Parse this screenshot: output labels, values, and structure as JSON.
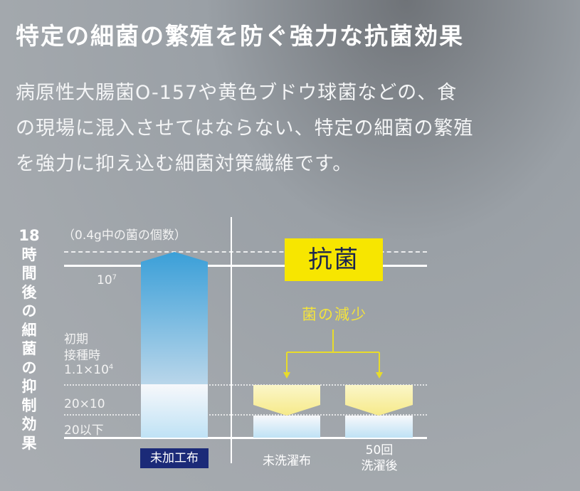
{
  "title": "特定の細菌の繁殖を防ぐ強力な抗菌効果",
  "description": [
    "病原性大腸菌O-157や黄色ブドウ球菌などの、食",
    "の現場に混入させてはならない、特定の細菌の繁殖",
    "を強力に抑え込む細菌対策繊維です。"
  ],
  "chart_data": {
    "type": "bar",
    "ylabel": "18時間後の細菌の抑制効果",
    "unit": "（0.4g中の菌の個数）",
    "ytick_labels": {
      "top_base": "10",
      "top_exp": "7",
      "initial_1": "初期",
      "initial_2": "接種時",
      "initial_base": "1.1×10",
      "initial_exp": "4",
      "mid": "20×10",
      "low": "20以下"
    },
    "categories": [
      "未加工布",
      "未洗濯布",
      "50回洗濯後"
    ],
    "category_lines": [
      [
        "未加工布"
      ],
      [
        "未洗濯布"
      ],
      [
        "50回",
        "洗濯後"
      ]
    ],
    "values": [
      "10^7以上",
      "20以下",
      "20以下"
    ],
    "badge": "抗菌",
    "annotation": "菌の減少",
    "colors": {
      "bar_top": "#3a9fd8",
      "badge": "#f7e600",
      "annotation": "#f3e33c",
      "label_bg": "#1b2a78"
    }
  }
}
